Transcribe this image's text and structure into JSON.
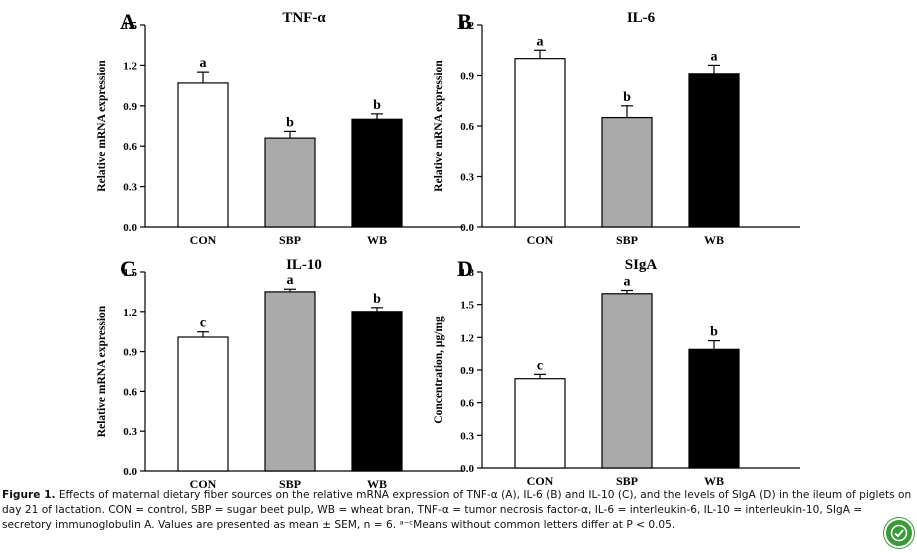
{
  "figure": {
    "caption_label": "Figure 1.",
    "caption_text": " Effects of maternal dietary fiber sources on the relative mRNA expression of TNF-α (A), IL-6 (B) and IL-10 (C), and the levels of SIgA (D) in the ileum of piglets on day 21 of lactation. CON = control, SBP = sugar beet pulp, WB = wheat bran, TNF-α = tumor necrosis factor-α, IL-6 = interleukin-6, IL-10 = interleukin-10, SIgA = secretory immunoglobulin A. Values are presented as mean ± SEM, n = 6. ᵃ⁻ᶜMeans without common letters differ at P < 0.05.",
    "badge_icon": "check-badge-icon",
    "colors": {
      "CON": "#ffffff",
      "SBP": "#aaaaaa",
      "WB": "#000000"
    }
  },
  "chart_data": [
    {
      "panel": "A",
      "type": "bar",
      "title": "TNF-α",
      "categories": [
        "CON",
        "SBP",
        "WB"
      ],
      "values": [
        1.07,
        0.66,
        0.8
      ],
      "errors": [
        0.08,
        0.05,
        0.04
      ],
      "letters": [
        "a",
        "b",
        "b"
      ],
      "ylabel": "Relative mRNA expression",
      "ylim": [
        0,
        1.5
      ],
      "yticks": [
        "0.0",
        "0.3",
        "0.6",
        "0.9",
        "1.2",
        "1.5"
      ]
    },
    {
      "panel": "B",
      "type": "bar",
      "title": "IL-6",
      "categories": [
        "CON",
        "SBP",
        "WB"
      ],
      "values": [
        1.0,
        0.65,
        0.91
      ],
      "errors": [
        0.05,
        0.07,
        0.05
      ],
      "letters": [
        "a",
        "b",
        "a"
      ],
      "ylabel": "Relative mRNA expression",
      "ylim": [
        0,
        1.2
      ],
      "yticks": [
        "0.0",
        "0.3",
        "0.6",
        "0.9",
        "1.2"
      ]
    },
    {
      "panel": "C",
      "type": "bar",
      "title": "IL-10",
      "categories": [
        "CON",
        "SBP",
        "WB"
      ],
      "values": [
        1.01,
        1.35,
        1.2
      ],
      "errors": [
        0.04,
        0.02,
        0.03
      ],
      "letters": [
        "c",
        "a",
        "b"
      ],
      "ylabel": "Relative mRNA expression",
      "ylim": [
        0,
        1.5
      ],
      "yticks": [
        "0.0",
        "0.3",
        "0.6",
        "0.9",
        "1.2",
        "1.5"
      ]
    },
    {
      "panel": "D",
      "type": "bar",
      "title": "SIgA",
      "categories": [
        "CON",
        "SBP",
        "WB"
      ],
      "values": [
        0.82,
        1.6,
        1.09
      ],
      "errors": [
        0.04,
        0.03,
        0.08
      ],
      "letters": [
        "c",
        "a",
        "b"
      ],
      "ylabel": "Concentration, μg/mg",
      "ylim": [
        0,
        1.8
      ],
      "yticks": [
        "0.0",
        "0.3",
        "0.6",
        "0.9",
        "1.2",
        "1.5",
        "1.8"
      ]
    }
  ]
}
